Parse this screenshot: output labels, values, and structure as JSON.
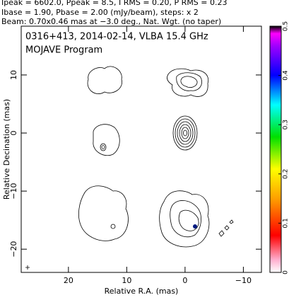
{
  "chart_data": {
    "type": "contour",
    "header": [
      "Ipeak = 6602.0, Ppeak = 8.5, I RMS = 0.20, P RMS = 0.23",
      "Ibase = 1.90, Pbase = 2.00 (mJy/beam), steps: x 2",
      "Beam: 0.70x0.46 mas at −3.0 deg., Nat. Wgt. (no taper)"
    ],
    "title": "0316+413, 2014-02-14, VLBA 15.4 GHz",
    "subtitle": "MOJAVE Program",
    "x_label": "Relative R.A. (mas)",
    "y_label": "Relative Decination (mas)",
    "xlim": [
      28.1,
      -13.1
    ],
    "xticks": [
      20,
      10,
      0,
      {
        "value": -10,
        "label": "−10"
      }
    ],
    "ylim": [
      -24,
      18.4
    ],
    "yticks": [
      10,
      0,
      {
        "value": -10,
        "label": "−10"
      },
      {
        "value": -20,
        "label": "−20"
      }
    ],
    "clim": [
      0,
      0.5
    ],
    "cticks": [
      0,
      0.1,
      0.2,
      0.3,
      0.4,
      0.5
    ]
  }
}
